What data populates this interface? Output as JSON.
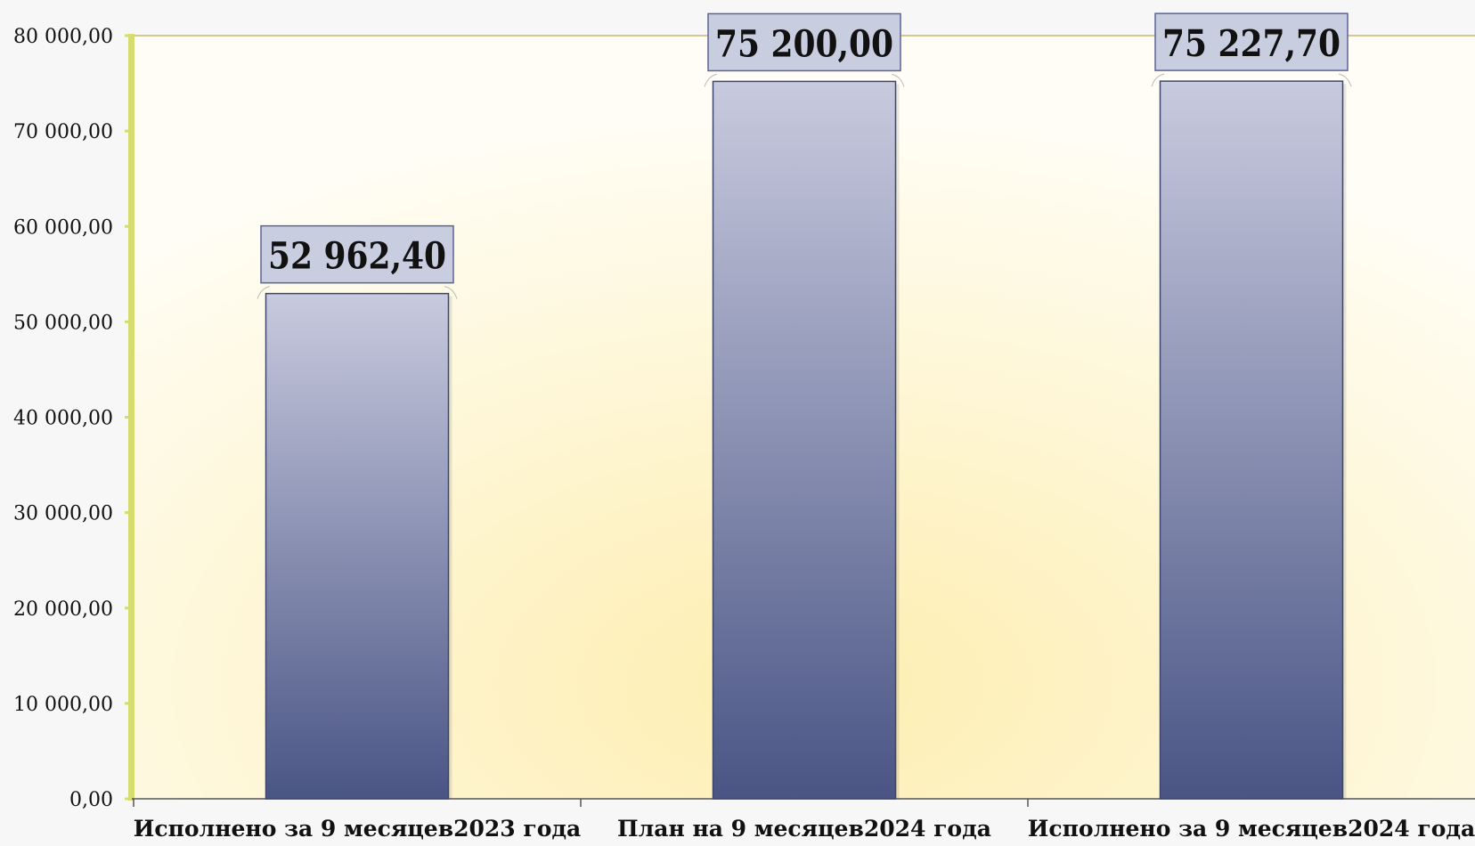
{
  "chart_data": {
    "type": "bar",
    "title": "",
    "xlabel": "",
    "ylabel": "",
    "categories": [
      "Исполнено за 9 месяцев2023 года",
      "План на 9 месяцев2024 года",
      "Исполнено за 9 месяцев2024 года"
    ],
    "values": [
      52962.4,
      75200.0,
      75227.7
    ],
    "value_labels": [
      "52 962,40",
      "75 200,00",
      "75 227,70"
    ],
    "ylim": [
      0,
      80000
    ],
    "yticks": [
      0,
      10000,
      20000,
      30000,
      40000,
      50000,
      60000,
      70000,
      80000
    ],
    "ytick_labels": [
      "0,00",
      "10 000,00",
      "20 000,00",
      "30 000,00",
      "40 000,00",
      "50 000,00",
      "60 000,00",
      "70 000,00",
      "80 000,00"
    ],
    "grid": false,
    "legend": "none",
    "colors": {
      "bar_top": "#c8cade",
      "bar_bottom": "#4a5585",
      "label_box": "#c9cde0",
      "label_border": "#5a6496",
      "axis": "#d6dc70",
      "plot_bg_center": "#fdeeb0",
      "plot_bg_edge": "#fffdf5"
    }
  }
}
